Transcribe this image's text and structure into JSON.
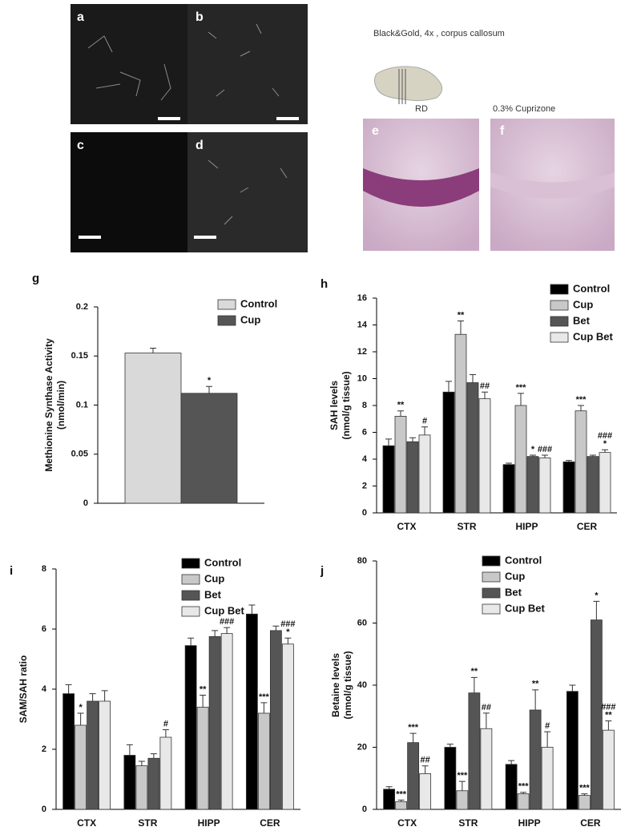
{
  "panels": {
    "image_labels": [
      "a",
      "b",
      "c",
      "d",
      "e",
      "f"
    ],
    "caption": "Black&Gold, 4x , corpus callosum",
    "rd": "RD",
    "cuprizone": "0.3% Cuprizone"
  },
  "chart_data": [
    {
      "type": "bar",
      "panel_label": "g",
      "ylabel": [
        "Methionine Synthase Activity",
        "(nmol/min)"
      ],
      "categories": [
        null
      ],
      "ylim": [
        0,
        0.2
      ],
      "yticks": [
        0,
        0.05,
        0.1,
        0.15,
        0.2
      ],
      "series": [
        {
          "name": "Control",
          "color": "#d9d9d9",
          "values": [
            0.153
          ],
          "errors": [
            0.005
          ],
          "annotations": [
            null
          ]
        },
        {
          "name": "Cup",
          "color": "#555555",
          "values": [
            0.112
          ],
          "errors": [
            0.007
          ],
          "annotations": [
            [
              "*"
            ]
          ]
        }
      ]
    },
    {
      "type": "bar",
      "panel_label": "h",
      "ylabel": [
        "SAH levels",
        "(nmol/g tissue)"
      ],
      "categories": [
        "CTX",
        "STR",
        "HIPP",
        "CER"
      ],
      "ylim": [
        0,
        16
      ],
      "yticks": [
        0,
        2,
        4,
        6,
        8,
        10,
        12,
        14,
        16
      ],
      "series": [
        {
          "name": "Control",
          "color": "#000000",
          "values": [
            5.0,
            9.0,
            3.6,
            3.8
          ],
          "errors": [
            0.5,
            0.8,
            0.1,
            0.1
          ],
          "annotations": [
            null,
            null,
            null,
            null
          ]
        },
        {
          "name": "Cup",
          "color": "#c8c8c8",
          "values": [
            7.2,
            13.3,
            8.0,
            7.6
          ],
          "errors": [
            0.4,
            1.0,
            0.9,
            0.4
          ],
          "annotations": [
            [
              "**"
            ],
            [
              "**"
            ],
            [
              "***"
            ],
            [
              "***"
            ]
          ]
        },
        {
          "name": "Bet",
          "color": "#555555",
          "values": [
            5.3,
            9.7,
            4.2,
            4.2
          ],
          "errors": [
            0.3,
            0.6,
            0.1,
            0.1
          ],
          "annotations": [
            null,
            null,
            [
              "*"
            ],
            null
          ]
        },
        {
          "name": "Cup Bet",
          "color": "#e8e8e8",
          "values": [
            5.8,
            8.5,
            4.1,
            4.5
          ],
          "errors": [
            0.6,
            0.5,
            0.2,
            0.2
          ],
          "annotations": [
            [
              "#"
            ],
            [
              "##"
            ],
            [
              "###"
            ],
            [
              "###",
              "*"
            ]
          ]
        }
      ]
    },
    {
      "type": "bar",
      "panel_label": "i",
      "ylabel": [
        "SAM/SAH ratio"
      ],
      "categories": [
        "CTX",
        "STR",
        "HIPP",
        "CER"
      ],
      "ylim": [
        0,
        8
      ],
      "yticks": [
        0,
        2,
        4,
        6,
        8
      ],
      "series": [
        {
          "name": "Control",
          "color": "#000000",
          "values": [
            3.85,
            1.8,
            5.45,
            6.5
          ],
          "errors": [
            0.3,
            0.35,
            0.25,
            0.3
          ],
          "annotations": [
            null,
            null,
            null,
            null
          ]
        },
        {
          "name": "Cup",
          "color": "#c8c8c8",
          "values": [
            2.8,
            1.45,
            3.4,
            3.2
          ],
          "errors": [
            0.4,
            0.15,
            0.4,
            0.35
          ],
          "annotations": [
            [
              "*"
            ],
            null,
            [
              "**"
            ],
            [
              "***"
            ]
          ]
        },
        {
          "name": "Bet",
          "color": "#555555",
          "values": [
            3.6,
            1.7,
            5.75,
            5.95
          ],
          "errors": [
            0.25,
            0.15,
            0.2,
            0.15
          ],
          "annotations": [
            null,
            null,
            null,
            null
          ]
        },
        {
          "name": "Cup Bet",
          "color": "#e8e8e8",
          "values": [
            3.6,
            2.4,
            5.85,
            5.5
          ],
          "errors": [
            0.35,
            0.25,
            0.2,
            0.2
          ],
          "annotations": [
            null,
            [
              "#"
            ],
            [
              "###"
            ],
            [
              "###",
              "*"
            ]
          ]
        }
      ]
    },
    {
      "type": "bar",
      "panel_label": "j",
      "ylabel": [
        "Betaine levels",
        "(nmol/g tissue)"
      ],
      "categories": [
        "CTX",
        "STR",
        "HIPP",
        "CER"
      ],
      "ylim": [
        0,
        80
      ],
      "yticks": [
        0,
        20,
        40,
        60,
        80
      ],
      "series": [
        {
          "name": "Control",
          "color": "#000000",
          "values": [
            6.5,
            20,
            14.5,
            38
          ],
          "errors": [
            0.8,
            1,
            1.2,
            2
          ],
          "annotations": [
            null,
            null,
            null,
            null
          ]
        },
        {
          "name": "Cup",
          "color": "#c8c8c8",
          "values": [
            2.5,
            6,
            5,
            4.5
          ],
          "errors": [
            0.5,
            3,
            0.5,
            0.5
          ],
          "annotations": [
            [
              "***"
            ],
            [
              "***"
            ],
            [
              "***"
            ],
            [
              "***"
            ]
          ]
        },
        {
          "name": "Bet",
          "color": "#555555",
          "values": [
            21.5,
            37.5,
            32,
            61
          ],
          "errors": [
            3,
            5,
            6.5,
            6
          ],
          "annotations": [
            [
              "***"
            ],
            [
              "**"
            ],
            [
              "**"
            ],
            [
              "*"
            ]
          ]
        },
        {
          "name": "Cup Bet",
          "color": "#e8e8e8",
          "values": [
            11.5,
            26,
            20,
            25.5
          ],
          "errors": [
            2.5,
            5,
            5,
            3
          ],
          "annotations": [
            [
              "##"
            ],
            [
              "##"
            ],
            [
              "#"
            ],
            [
              "###",
              "**"
            ]
          ]
        }
      ]
    }
  ]
}
